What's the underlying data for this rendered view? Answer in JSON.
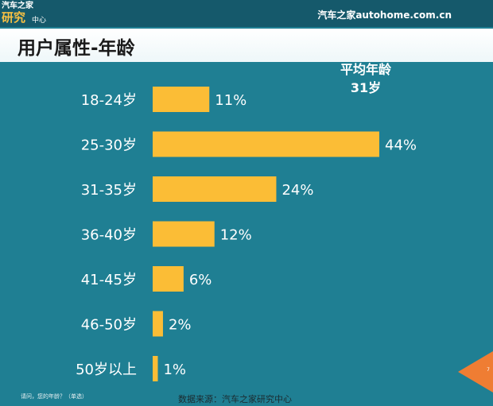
{
  "header": {
    "logo_line1": "汽车之家",
    "logo_line2": "研究",
    "logo_line3": "中心",
    "brand": "汽车之家autohome.com.cn"
  },
  "title": "用户属性-年龄",
  "average": {
    "label": "平均年龄",
    "value": "31岁"
  },
  "chart_data": {
    "type": "bar",
    "orientation": "horizontal",
    "categories": [
      "18-24岁",
      "25-30岁",
      "31-35岁",
      "36-40岁",
      "41-45岁",
      "46-50岁",
      "50岁以上"
    ],
    "values": [
      11,
      44,
      24,
      12,
      6,
      2,
      1
    ],
    "value_labels": [
      "11%",
      "44%",
      "24%",
      "12%",
      "6%",
      "2%",
      "1%"
    ],
    "unit": "%",
    "xlim": [
      0,
      44
    ],
    "grid": false,
    "bar_color": "#fbbd36"
  },
  "footnote": "请问，您的年龄？（单选）",
  "source": "数据来源：汽车之家研究中心",
  "page_number": "7",
  "colors": {
    "background": "#1f7f93",
    "accent": "#ef7d33",
    "bar": "#fbbd36"
  }
}
